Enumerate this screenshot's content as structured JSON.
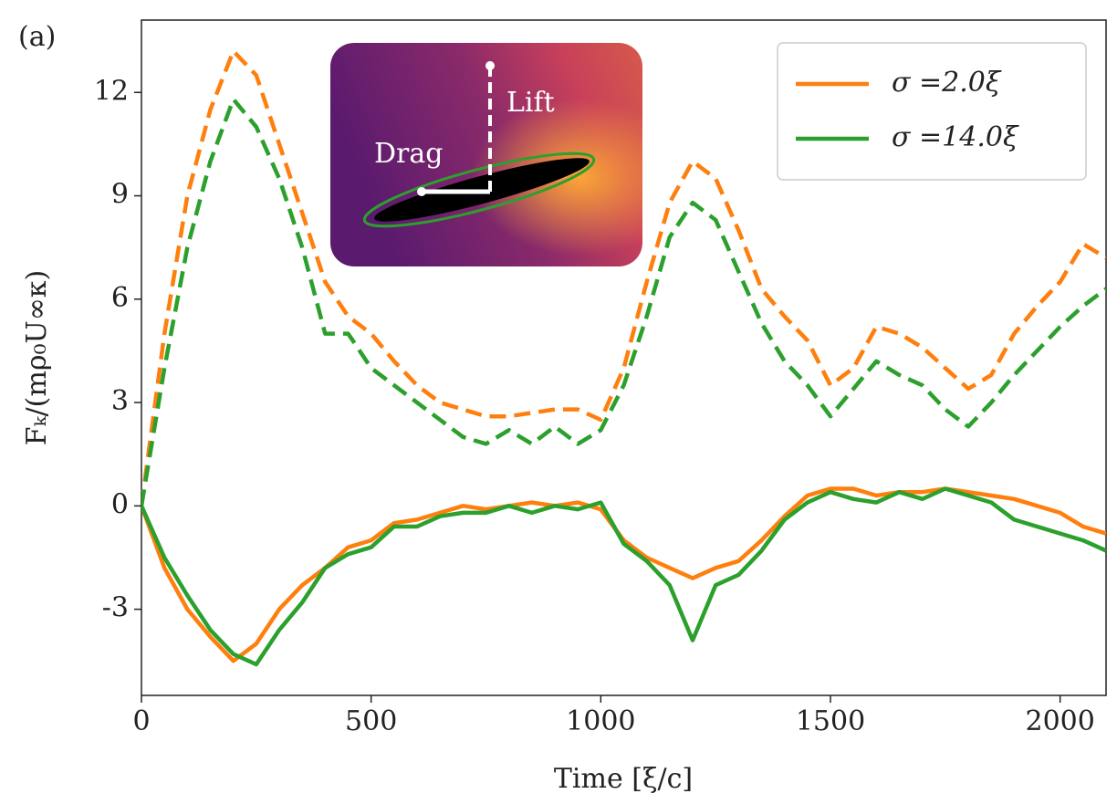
{
  "chart_data": {
    "type": "line",
    "panel_label": "(a)",
    "xlabel": "Time [ξ/c]",
    "ylabel": "Fₖ/(mρ₀U∞κ)",
    "xlim": [
      0,
      2100
    ],
    "ylim": [
      -5.5,
      14.1
    ],
    "xticks": [
      0,
      500,
      1000,
      1500,
      2000
    ],
    "yticks": [
      -3,
      0,
      3,
      6,
      9,
      12
    ],
    "legend": "upper right",
    "inset_labels": [
      "Lift",
      "Drag"
    ],
    "x": [
      0,
      50,
      100,
      150,
      200,
      250,
      300,
      350,
      400,
      450,
      500,
      550,
      600,
      650,
      700,
      750,
      800,
      850,
      900,
      950,
      1000,
      1050,
      1100,
      1150,
      1200,
      1250,
      1300,
      1350,
      1400,
      1450,
      1500,
      1550,
      1600,
      1650,
      1700,
      1750,
      1800,
      1850,
      1900,
      1950,
      2000,
      2050,
      2100
    ],
    "series": [
      {
        "name": "σ =2.0ξ",
        "color": "#ff7f0e",
        "dash": false,
        "values": [
          0,
          -1.8,
          -3,
          -3.8,
          -4.5,
          -4,
          -3,
          -2.3,
          -1.8,
          -1.2,
          -1,
          -0.5,
          -0.4,
          -0.2,
          0,
          -0.1,
          0,
          0.1,
          0,
          0.1,
          -0.1,
          -1,
          -1.5,
          -1.8,
          -2.1,
          -1.8,
          -1.6,
          -1,
          -0.3,
          0.3,
          0.5,
          0.5,
          0.3,
          0.4,
          0.4,
          0.5,
          0.4,
          0.3,
          0.2,
          0,
          -0.2,
          -0.6,
          -0.8
        ]
      },
      {
        "name": "σ =14.0ξ",
        "color": "#2ca02c",
        "dash": false,
        "values": [
          0,
          -1.5,
          -2.6,
          -3.6,
          -4.3,
          -4.6,
          -3.6,
          -2.8,
          -1.8,
          -1.4,
          -1.2,
          -0.6,
          -0.6,
          -0.3,
          -0.2,
          -0.2,
          0,
          -0.2,
          0,
          -0.1,
          0.1,
          -1.1,
          -1.6,
          -2.3,
          -3.9,
          -2.3,
          -2,
          -1.3,
          -0.4,
          0.1,
          0.4,
          0.2,
          0.1,
          0.4,
          0.2,
          0.5,
          0.3,
          0.1,
          -0.4,
          -0.6,
          -0.8,
          -1,
          -1.3
        ]
      },
      {
        "color": "#ff7f0e",
        "dash": true,
        "values": [
          0,
          5,
          9,
          11.5,
          13.2,
          12.5,
          10.5,
          8.5,
          6.5,
          5.5,
          5,
          4.2,
          3.5,
          3,
          2.8,
          2.6,
          2.6,
          2.7,
          2.8,
          2.8,
          2.5,
          4,
          6.5,
          8.8,
          10,
          9.5,
          8,
          6.3,
          5.5,
          4.8,
          3.5,
          4,
          5.2,
          5,
          4.6,
          4,
          3.4,
          3.8,
          5,
          5.8,
          6.5,
          7.6,
          7.2
        ]
      },
      {
        "color": "#2ca02c",
        "dash": true,
        "values": [
          0,
          4,
          7.5,
          10,
          11.8,
          11,
          9.5,
          7.5,
          5,
          5,
          4,
          3.5,
          3,
          2.5,
          2,
          1.8,
          2.2,
          1.8,
          2.3,
          1.8,
          2.2,
          3.5,
          5.5,
          7.8,
          8.8,
          8.3,
          6.8,
          5.3,
          4.2,
          3.5,
          2.6,
          3.4,
          4.2,
          3.8,
          3.5,
          2.8,
          2.3,
          3,
          3.8,
          4.5,
          5.2,
          5.8,
          6.3
        ]
      }
    ]
  }
}
